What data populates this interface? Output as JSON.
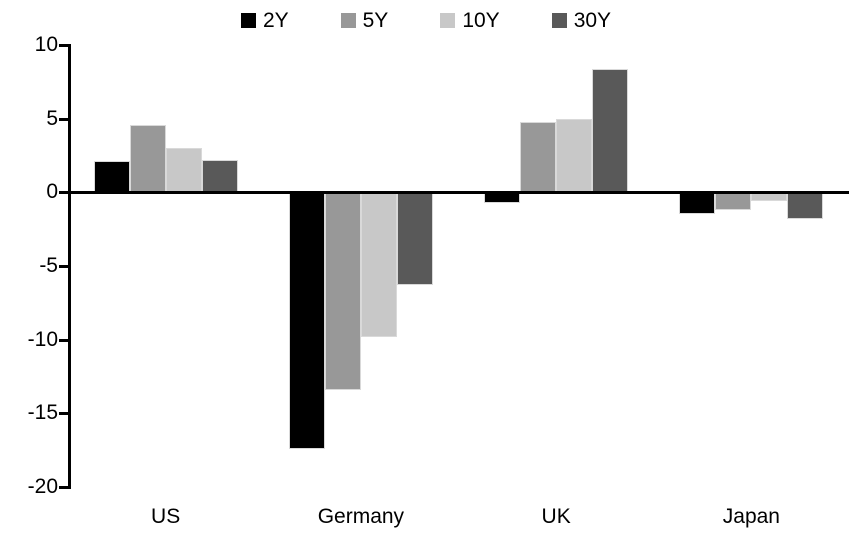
{
  "chart_data": {
    "type": "bar",
    "title": "",
    "xlabel": "",
    "ylabel": "",
    "categories": [
      "US",
      "Germany",
      "UK",
      "Japan"
    ],
    "series": [
      {
        "name": "2Y",
        "color": "#000000",
        "values": [
          2.1,
          -17.4,
          -0.7,
          -1.5
        ]
      },
      {
        "name": "5Y",
        "color": "#989898",
        "values": [
          4.6,
          -13.4,
          4.8,
          -1.2
        ]
      },
      {
        "name": "10Y",
        "color": "#c8c8c8",
        "values": [
          3.0,
          -9.8,
          5.0,
          -0.6
        ]
      },
      {
        "name": "30Y",
        "color": "#595959",
        "values": [
          2.2,
          -6.3,
          8.4,
          -1.8
        ]
      }
    ],
    "ylim": [
      -20,
      10
    ],
    "yticks": [
      10,
      5,
      0,
      -5,
      -10,
      -15,
      -20
    ],
    "grid": false,
    "legend_position": "top",
    "axis_color": "#000000",
    "bar_border_color": "#d9d9d9",
    "background_color": "#ffffff"
  }
}
